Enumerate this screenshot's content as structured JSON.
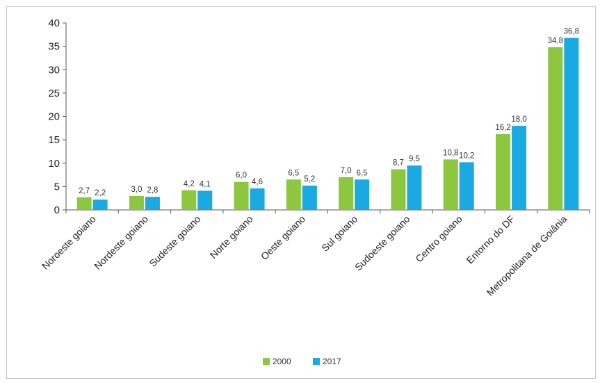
{
  "chart_data": {
    "type": "bar",
    "title": "",
    "xlabel": "",
    "ylabel": "",
    "ylim": [
      0,
      40
    ],
    "yticks": [
      0,
      5,
      10,
      15,
      20,
      25,
      30,
      35,
      40
    ],
    "grid": false,
    "legend_position": "bottom",
    "categories": [
      "Noroeste goiano",
      "Nordeste goiano",
      "Sudeste goiano",
      "Norte goiano",
      "Oeste goiano",
      "Sul goiano",
      "Sudoeste goiano",
      "Centro goiano",
      "Entorno do DF",
      "Metropolitana de Goiânia"
    ],
    "series": [
      {
        "name": "2000",
        "color": "#8dc63f",
        "values": [
          2.7,
          3.0,
          4.2,
          6.0,
          6.5,
          7.0,
          8.7,
          10.8,
          16.2,
          34.8
        ],
        "labels": [
          "2,7",
          "3,0",
          "4,2",
          "6,0",
          "6,5",
          "7,0",
          "8,7",
          "10,8",
          "16,2",
          "34,8"
        ]
      },
      {
        "name": "2017",
        "color": "#1ba9e1",
        "values": [
          2.2,
          2.8,
          4.1,
          4.6,
          5.2,
          6.5,
          9.5,
          10.2,
          18.0,
          36.8
        ],
        "labels": [
          "2,2",
          "2,8",
          "4,1",
          "4,6",
          "5,2",
          "6,5",
          "9,5",
          "10,2",
          "18,0",
          "36,8"
        ]
      }
    ]
  }
}
